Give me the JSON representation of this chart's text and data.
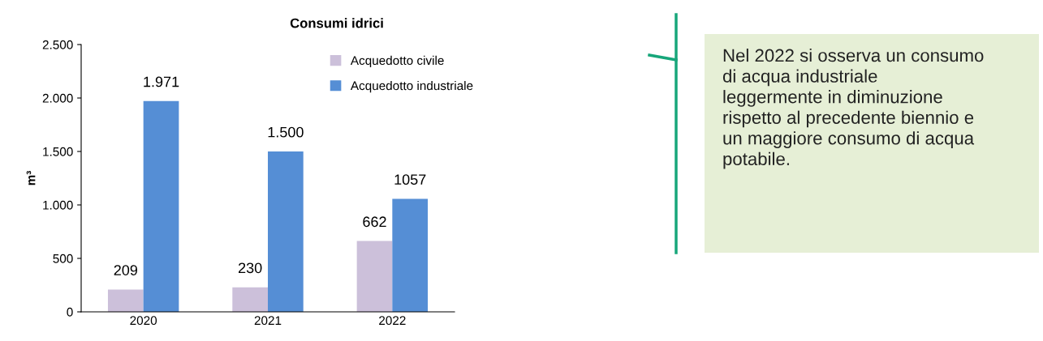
{
  "chart_data": {
    "type": "bar",
    "title": "Consumi idrici",
    "ylabel": "m³",
    "categories": [
      "2020",
      "2021",
      "2022"
    ],
    "series": [
      {
        "name": "Acquedotto civile",
        "color": "#ccc0da",
        "values": [
          209,
          230,
          662
        ],
        "value_labels": [
          "209",
          "230",
          "662"
        ]
      },
      {
        "name": "Acquedotto industriale",
        "color": "#558ed5",
        "values": [
          1971,
          1500,
          1057
        ],
        "value_labels": [
          "1.971",
          "1.500",
          "1057"
        ]
      }
    ],
    "ylim": [
      0,
      2500
    ],
    "yticks": [
      0,
      500,
      {
        "value": 1000,
        "label": "1.000"
      },
      {
        "value": 1500,
        "label": "1.500"
      },
      {
        "value": 2000,
        "label": "2.000"
      },
      {
        "value": 2500,
        "label": "2.500"
      }
    ],
    "grid": false,
    "legend": "top right",
    "annotations": [
      "Nel 2022 si osserva un consumo\ndi acqua industriale\nleggermente in diminuzione\nrispetto al precedente biennio e\nun maggiore consumo di acqua\npotabile."
    ]
  }
}
